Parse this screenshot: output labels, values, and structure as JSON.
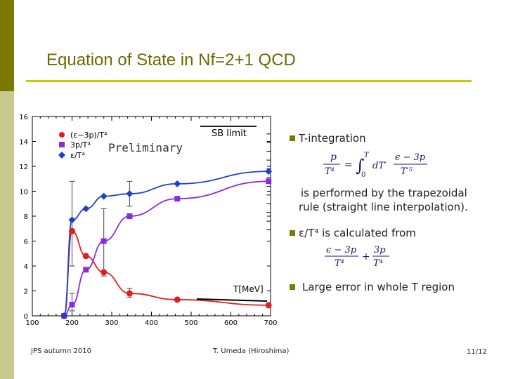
{
  "slide": {
    "title": "Equation of State in Nf=2+1 QCD",
    "accent_color": "#c8c800",
    "sidebar_color": "#c8c890",
    "sidebar_dark_color": "#7a7a00"
  },
  "bullets": {
    "b1_text": "T-integration",
    "b1_continuation_1": "is performed by the trapezoidal",
    "b1_continuation_2": "rule (straight line interpolation).",
    "b2_text": "ε/T⁴ is calculated from",
    "b3_text": "Large error in whole T region",
    "bullet_icon": "square-bullet"
  },
  "equations": {
    "eq1_lhs_num": "p",
    "eq1_lhs_den": "T⁴",
    "eq1_equals": "=",
    "eq1_int_upper": "T",
    "eq1_int_lower": "0",
    "eq1_integrand": "dT′",
    "eq1_frac_num": "ϵ − 3p",
    "eq1_frac_den": "T′⁵",
    "eq2_frac1_num": "ϵ − 3p",
    "eq2_frac1_den": "T⁴",
    "eq2_plus": "+",
    "eq2_frac2_num": "3p",
    "eq2_frac2_den": "T⁴"
  },
  "footer": {
    "left": "JPS autumn 2010",
    "center": "T. Umeda (Hiroshima)",
    "page": "11",
    "total": "/12"
  },
  "chart_data": {
    "type": "scatter",
    "xlabel": "T[MeV]",
    "ylabel": "",
    "xlim": [
      100,
      700
    ],
    "ylim": [
      0,
      16
    ],
    "x_ticks": [
      "100",
      "200",
      "300",
      "400",
      "500",
      "600",
      "700"
    ],
    "y_ticks": [
      "0",
      "2",
      "4",
      "6",
      "8",
      "10",
      "12",
      "14",
      "16"
    ],
    "annotations": [
      "Preliminary",
      "SB limit"
    ],
    "legend_placement": "top-left",
    "grid": false,
    "series": [
      {
        "name": "(ε−3p)/T⁴",
        "color": "#e02020",
        "marker": "circle",
        "x": [
          180,
          200,
          235,
          280,
          345,
          465,
          695
        ],
        "y": [
          0.0,
          6.8,
          4.8,
          3.5,
          1.8,
          1.3,
          0.85
        ]
      },
      {
        "name": "3p/T⁴",
        "color": "#8a2be2",
        "marker": "square",
        "x": [
          180,
          200,
          235,
          280,
          345,
          465,
          695
        ],
        "y": [
          0.0,
          0.9,
          3.7,
          6.0,
          8.0,
          9.4,
          10.8
        ]
      },
      {
        "name": "ε/T⁴",
        "color": "#1f3fcc",
        "marker": "diamond",
        "x": [
          180,
          200,
          235,
          280,
          345,
          465,
          695
        ],
        "y": [
          0.0,
          7.7,
          8.6,
          9.6,
          9.8,
          10.6,
          11.6
        ]
      }
    ]
  }
}
